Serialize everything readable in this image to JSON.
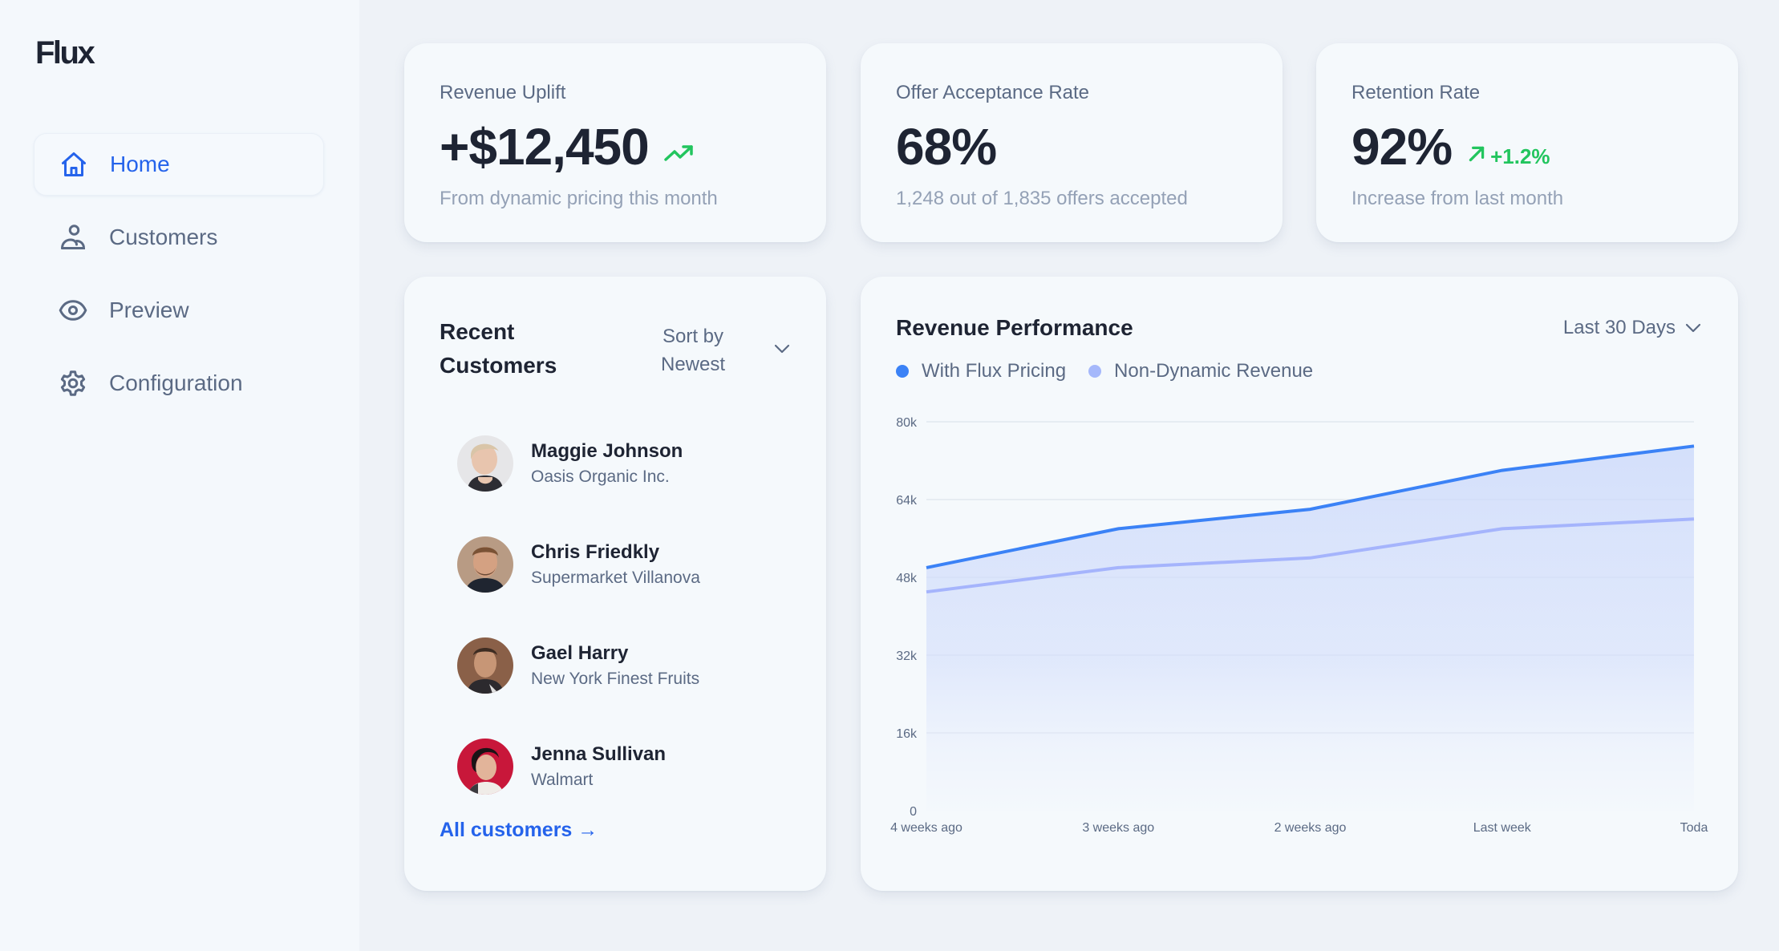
{
  "app": {
    "logo": "Flux"
  },
  "sidebar": {
    "items": [
      {
        "label": "Home",
        "icon": "home-icon",
        "active": true
      },
      {
        "label": "Customers",
        "icon": "users-icon",
        "active": false
      },
      {
        "label": "Preview",
        "icon": "eye-icon",
        "active": false
      },
      {
        "label": "Configuration",
        "icon": "gear-icon",
        "active": false
      }
    ]
  },
  "stats": [
    {
      "title": "Revenue Uplift",
      "value": "+$12,450",
      "trend": "",
      "trend_icon": "trending-up-icon",
      "subtitle": "From dynamic pricing this month"
    },
    {
      "title": "Offer Acceptance Rate",
      "value": "68%",
      "trend": "",
      "subtitle": "1,248 out of 1,835 offers accepted"
    },
    {
      "title": "Retention Rate",
      "value": "92%",
      "trend": "+1.2%",
      "trend_icon": "arrow-up-right-icon",
      "subtitle": "Increase from last month"
    }
  ],
  "customers": {
    "title": "Recent Customers",
    "sort_label": "Sort by Newest",
    "items": [
      {
        "name": "Maggie Johnson",
        "company": "Oasis Organic Inc."
      },
      {
        "name": "Chris Friedkly",
        "company": "Supermarket Villanova"
      },
      {
        "name": "Gael Harry",
        "company": "New York Finest Fruits"
      },
      {
        "name": "Jenna Sullivan",
        "company": "Walmart"
      }
    ],
    "all_link": "All customers →"
  },
  "revenue": {
    "title": "Revenue Performance",
    "range": "Last 30 Days",
    "legend": [
      {
        "label": "With Flux Pricing",
        "color": "#3b82f6"
      },
      {
        "label": "Non-Dynamic Revenue",
        "color": "#a5b8fb"
      }
    ]
  },
  "colors": {
    "accent": "#2563eb",
    "positive": "#22c55e",
    "flux_line": "#3b82f6",
    "nondynamic_line": "#a5b4fc"
  },
  "chart_data": {
    "type": "area",
    "title": "Revenue Performance",
    "categories": [
      "4 weeks ago",
      "3 weeks ago",
      "2 weeks ago",
      "Last week",
      "Toda"
    ],
    "series": [
      {
        "name": "With Flux Pricing",
        "values": [
          50000,
          58000,
          62000,
          70000,
          75000
        ]
      },
      {
        "name": "Non-Dynamic Revenue",
        "values": [
          45000,
          50000,
          52000,
          58000,
          60000
        ]
      }
    ],
    "yticks": [
      "0",
      "16k",
      "32k",
      "48k",
      "64k",
      "80k"
    ],
    "ylim": [
      0,
      80000
    ],
    "xlabel": "",
    "ylabel": "",
    "grid": true,
    "legend_position": "top-left"
  }
}
